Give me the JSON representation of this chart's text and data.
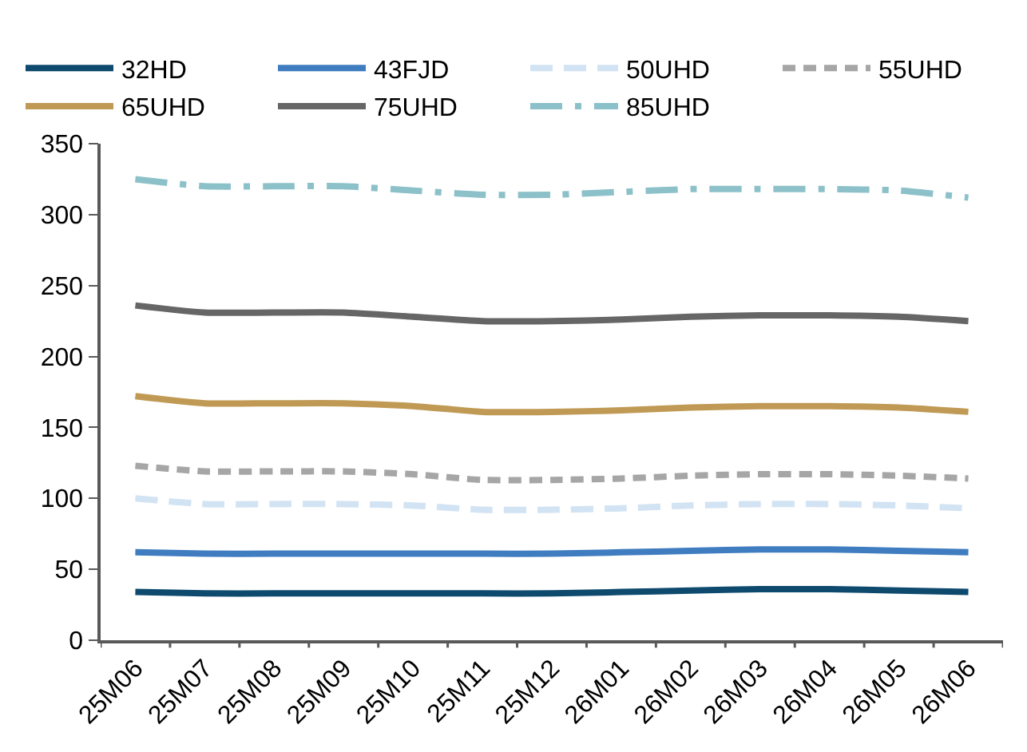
{
  "chart_data": {
    "type": "line",
    "categories": [
      "25M06",
      "25M07",
      "25M08",
      "25M09",
      "25M10",
      "25M11",
      "25M12",
      "26M01",
      "26M02",
      "26M03",
      "26M04",
      "26M05",
      "26M06"
    ],
    "series": [
      {
        "name": "32HD",
        "color": "#0e4a6e",
        "line_style": "solid",
        "values": [
          34,
          33,
          33,
          33,
          33,
          33,
          33,
          34,
          35,
          36,
          36,
          35,
          34
        ]
      },
      {
        "name": "43FJD",
        "color": "#3f7cc0",
        "line_style": "solid",
        "values": [
          62,
          61,
          61,
          61,
          61,
          61,
          61,
          62,
          63,
          64,
          64,
          63,
          62
        ]
      },
      {
        "name": "50UHD",
        "color": "#d2e3f3",
        "line_style": "longdash",
        "values": [
          100,
          96,
          96,
          96,
          95,
          92,
          92,
          93,
          95,
          96,
          96,
          95,
          93
        ]
      },
      {
        "name": "55UHD",
        "color": "#a6a6a6",
        "line_style": "dashed",
        "values": [
          123,
          119,
          119,
          119,
          117,
          113,
          113,
          114,
          116,
          117,
          117,
          116,
          114
        ]
      },
      {
        "name": "65UHD",
        "color": "#c09a55",
        "line_style": "solid",
        "values": [
          172,
          167,
          167,
          167,
          165,
          161,
          161,
          162,
          164,
          165,
          165,
          164,
          161
        ]
      },
      {
        "name": "75UHD",
        "color": "#666666",
        "line_style": "solid",
        "values": [
          236,
          231,
          231,
          231,
          228,
          225,
          225,
          226,
          228,
          229,
          229,
          228,
          225
        ]
      },
      {
        "name": "85UHD",
        "color": "#8cc1c9",
        "line_style": "longdashdot",
        "values": [
          325,
          320,
          320,
          320,
          317,
          314,
          314,
          316,
          318,
          318,
          318,
          317,
          312
        ]
      }
    ],
    "ylim": [
      0,
      350
    ],
    "yticks": [
      0,
      50,
      100,
      150,
      200,
      250,
      300,
      350
    ],
    "legend": "top",
    "marker": "none"
  }
}
